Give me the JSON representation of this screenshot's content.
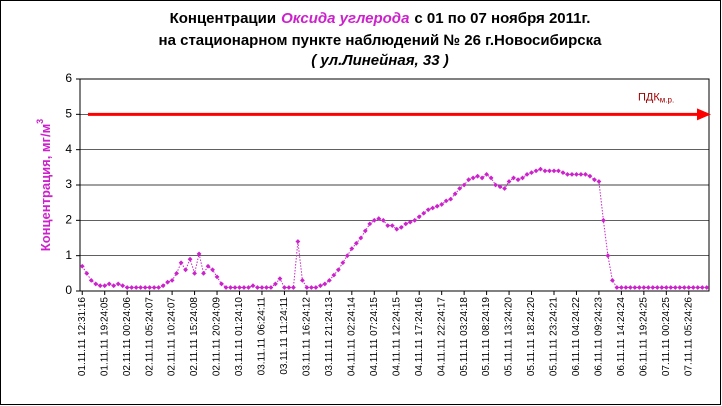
{
  "chart_data": {
    "type": "line",
    "title": [
      "Концентрации",
      "Оксида углерода",
      "с 01 по 07 ноября  2011г."
    ],
    "subtitle": [
      "на стационарном пункте наблюдений № 26 г.Новосибирска",
      "( ул.Линейная, 33 )"
    ],
    "ylabel": "Концентрация, мг/м",
    "ylabel_superscript": "3",
    "color": "#cc22cc",
    "ylim": [
      0,
      6
    ],
    "yticks": [
      0,
      1,
      2,
      3,
      4,
      5,
      6
    ],
    "grid": true,
    "pdk": {
      "label": "ПДК",
      "label_sub": "м.р.",
      "value": 5,
      "color": "#ff0000"
    },
    "categories": [
      "01.11.11 12:31:16",
      null,
      null,
      null,
      null,
      "01.11.11 19:24:05",
      null,
      null,
      null,
      null,
      "02.11.11 00:24:06",
      null,
      null,
      null,
      null,
      "02.11.11 05:24:07",
      null,
      null,
      null,
      null,
      "02.11.11 10:24:07",
      null,
      null,
      null,
      null,
      "02.11.11 15:24:08",
      null,
      null,
      null,
      null,
      "02.11.11 20:24:09",
      null,
      null,
      null,
      null,
      "03.11.11 01:24:10",
      null,
      null,
      null,
      null,
      "03.11.11 06:24:11",
      null,
      null,
      null,
      null,
      "03.11.11 11:24:11",
      null,
      null,
      null,
      null,
      "03.11.11 16:24:12",
      null,
      null,
      null,
      null,
      "03.11.11 21:24:13",
      null,
      null,
      null,
      null,
      "04.11.11 02:24:14",
      null,
      null,
      null,
      null,
      "04.11.11 07:24:15",
      null,
      null,
      null,
      null,
      "04.11.11 12:24:15",
      null,
      null,
      null,
      null,
      "04.11.11 17:24:16",
      null,
      null,
      null,
      null,
      "04.11.11 22:24:17",
      null,
      null,
      null,
      null,
      "05.11.11 03:24:18",
      null,
      null,
      null,
      null,
      "05.11.11 08:24:19",
      null,
      null,
      null,
      null,
      "05.11.11 13:24:20",
      null,
      null,
      null,
      null,
      "05.11.11 18:24:20",
      null,
      null,
      null,
      null,
      "05.11.11 23:24:21",
      null,
      null,
      null,
      null,
      "06.11.11 04:24:22",
      null,
      null,
      null,
      null,
      "06.11.11 09:24:23",
      null,
      null,
      null,
      null,
      "06.11.11 14:24:24",
      null,
      null,
      null,
      null,
      "06.11.11 19:24:25",
      null,
      null,
      null,
      null,
      "07.11.11 00:24:25",
      null,
      null,
      null,
      null,
      "07.11.11 05:24:26",
      null,
      null,
      null,
      null
    ],
    "values": [
      0.7,
      0.5,
      0.3,
      0.2,
      0.15,
      0.15,
      0.2,
      0.15,
      0.2,
      0.15,
      0.1,
      0.1,
      0.1,
      0.1,
      0.1,
      0.1,
      0.1,
      0.1,
      0.15,
      0.25,
      0.3,
      0.5,
      0.8,
      0.6,
      0.9,
      0.5,
      1.05,
      0.5,
      0.7,
      0.6,
      0.4,
      0.2,
      0.1,
      0.1,
      0.1,
      0.1,
      0.1,
      0.1,
      0.15,
      0.1,
      0.1,
      0.1,
      0.1,
      0.2,
      0.35,
      0.1,
      0.1,
      0.1,
      1.4,
      0.3,
      0.1,
      0.1,
      0.1,
      0.15,
      0.2,
      0.3,
      0.45,
      0.6,
      0.8,
      1.0,
      1.2,
      1.35,
      1.5,
      1.7,
      1.9,
      2.0,
      2.05,
      2.0,
      1.85,
      1.85,
      1.75,
      1.8,
      1.9,
      1.95,
      2.0,
      2.1,
      2.2,
      2.3,
      2.35,
      2.4,
      2.45,
      2.55,
      2.6,
      2.75,
      2.9,
      3.0,
      3.15,
      3.2,
      3.25,
      3.2,
      3.3,
      3.2,
      3.0,
      2.95,
      2.9,
      3.1,
      3.2,
      3.15,
      3.2,
      3.3,
      3.35,
      3.4,
      3.45,
      3.4,
      3.4,
      3.4,
      3.4,
      3.35,
      3.3,
      3.3,
      3.3,
      3.3,
      3.3,
      3.25,
      3.15,
      3.1,
      2.0,
      1.0,
      0.3,
      0.1,
      0.1,
      0.1,
      0.1,
      0.1,
      0.1,
      0.1,
      0.1,
      0.1,
      0.1,
      0.1,
      0.1,
      0.1,
      0.1,
      0.1,
      0.1,
      0.1,
      0.1,
      0.1,
      0.1,
      0.1
    ]
  }
}
